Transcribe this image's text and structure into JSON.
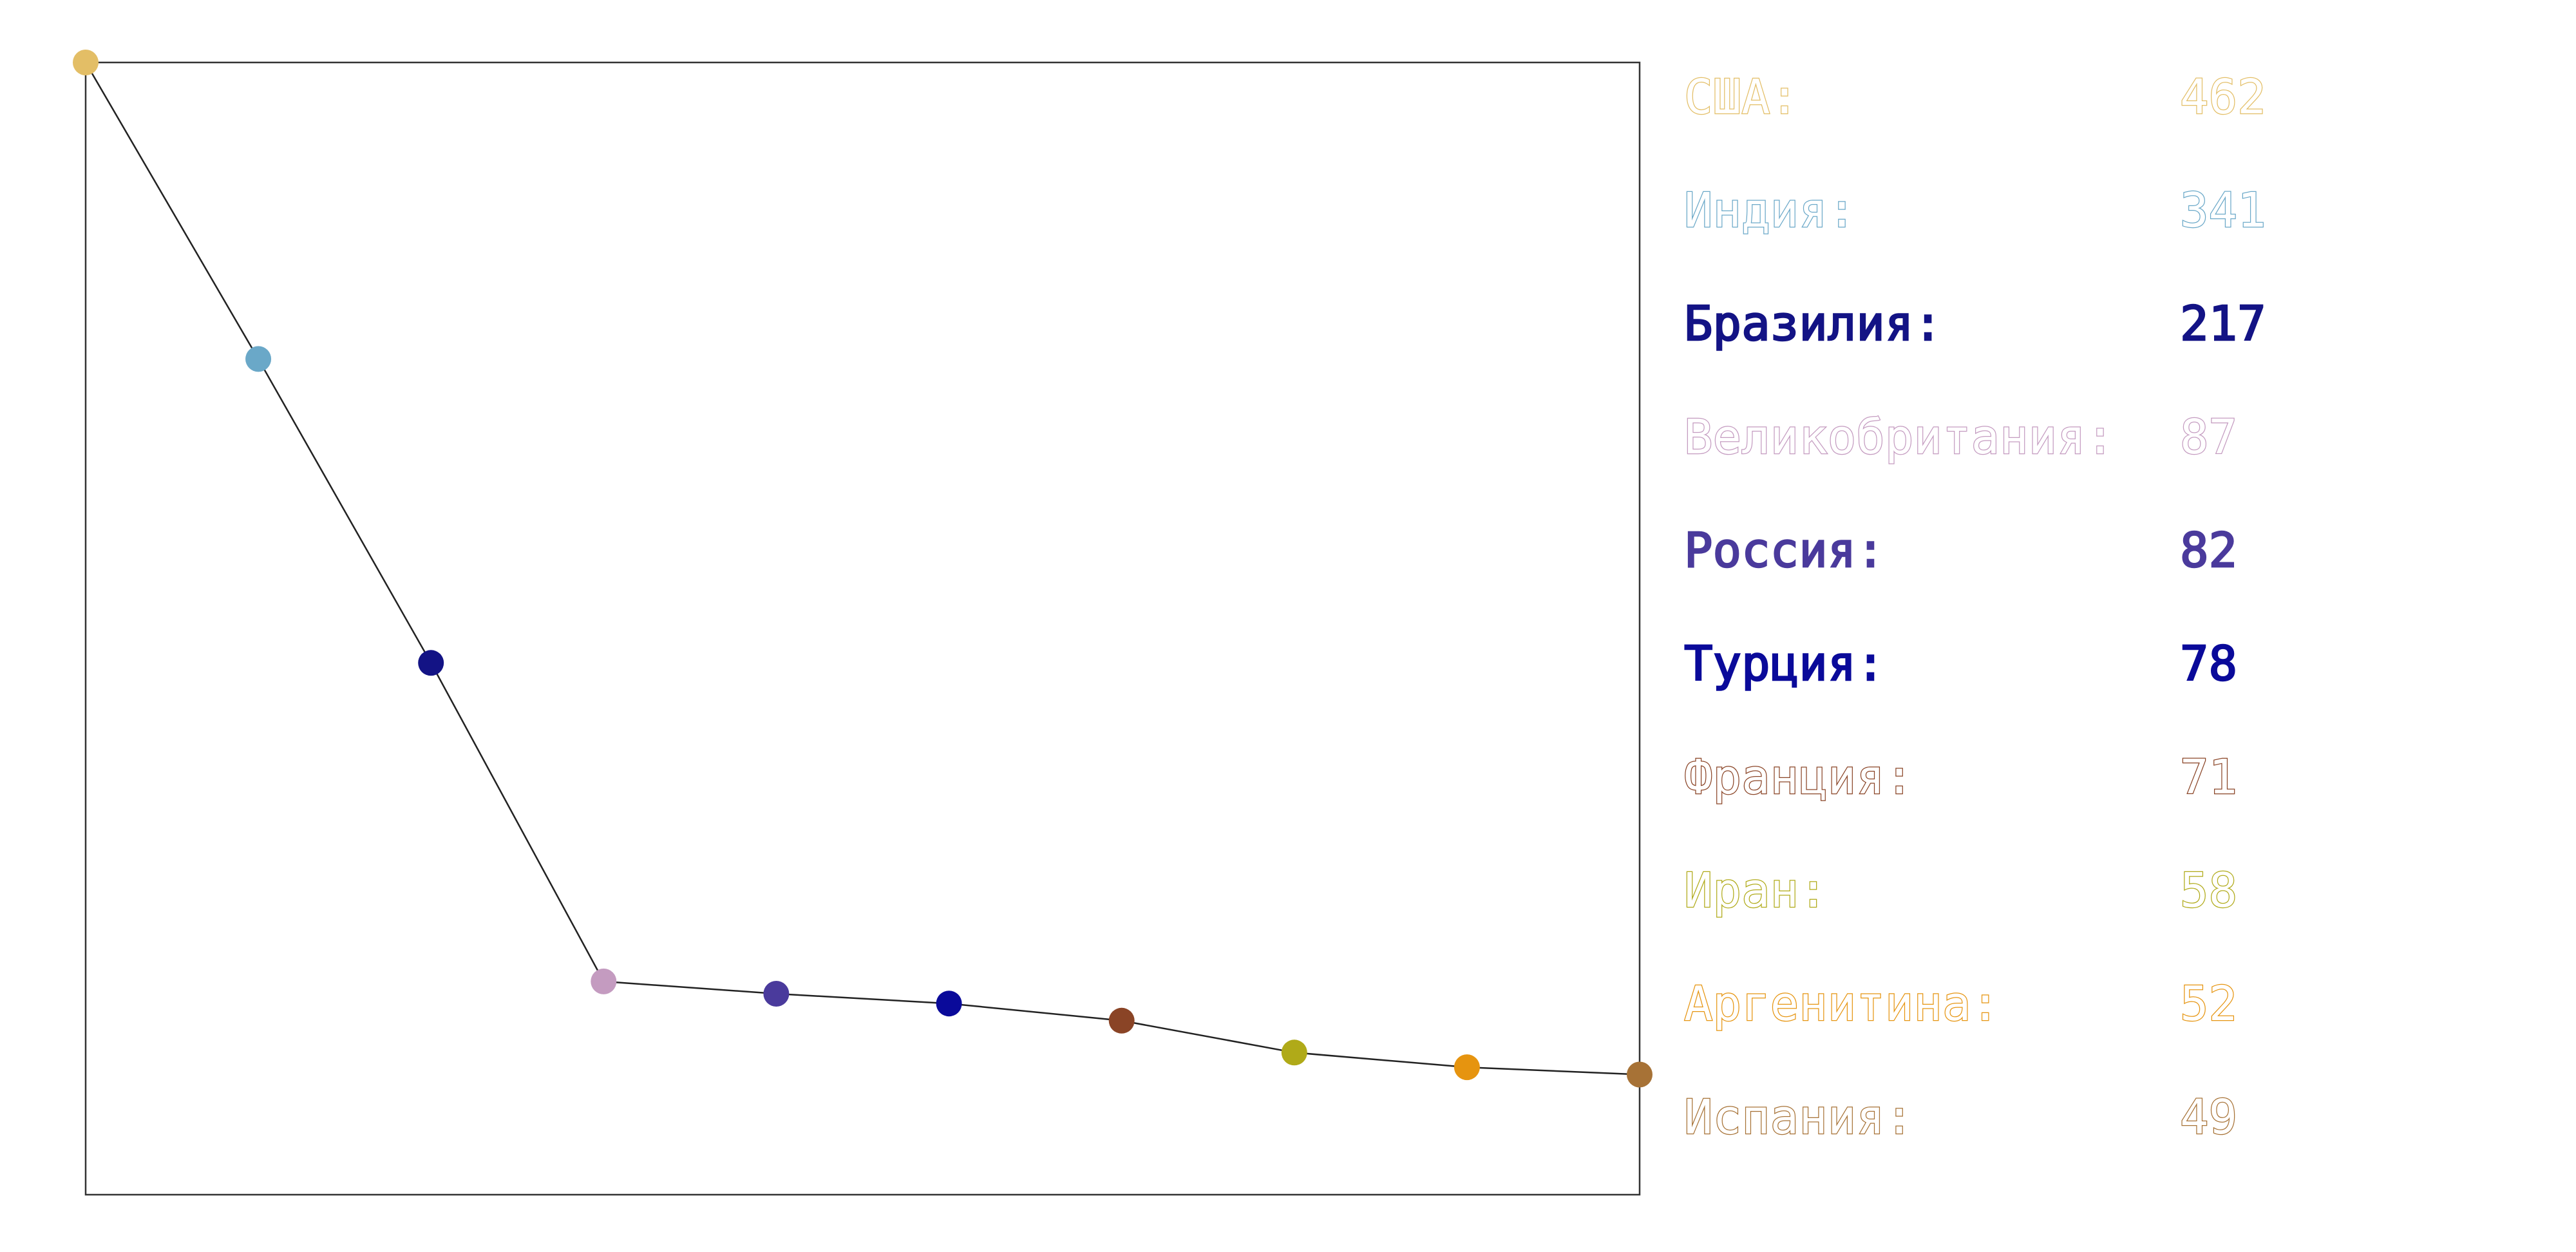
{
  "chart_data": {
    "type": "line",
    "categories": [
      "США",
      "Индия",
      "Бразилия",
      "Великобритания",
      "Россия",
      "Турция",
      "Франция",
      "Иран",
      "Аргенитина",
      "Испания"
    ],
    "values": [
      462,
      341,
      217,
      87,
      82,
      78,
      71,
      58,
      52,
      49
    ],
    "ylim": [
      0,
      462
    ],
    "grid": false,
    "legend_placement": "right",
    "line_color": "#222222",
    "legend": [
      {
        "label": "США:",
        "value": "462",
        "color": "#e3be66",
        "outline": true
      },
      {
        "label": "Индия:",
        "value": "341",
        "color": "#6aa8c8",
        "outline": true
      },
      {
        "label": "Бразилия:",
        "value": "217",
        "color": "#131385",
        "outline": false
      },
      {
        "label": "Великобритания:",
        "value": "87",
        "color": "#c49bc0",
        "outline": true
      },
      {
        "label": "Россия:",
        "value": "82",
        "color": "#4a3a9c",
        "outline": false
      },
      {
        "label": "Турция:",
        "value": "78",
        "color": "#0a0a9a",
        "outline": false
      },
      {
        "label": "Франция:",
        "value": "71",
        "color": "#8a4426",
        "outline": true
      },
      {
        "label": "Иран:",
        "value": "58",
        "color": "#b0aa18",
        "outline": true
      },
      {
        "label": "Аргенитина:",
        "value": "52",
        "color": "#e6940f",
        "outline": true
      },
      {
        "label": "Испания:",
        "value": "49",
        "color": "#a77236",
        "outline": true
      }
    ]
  }
}
